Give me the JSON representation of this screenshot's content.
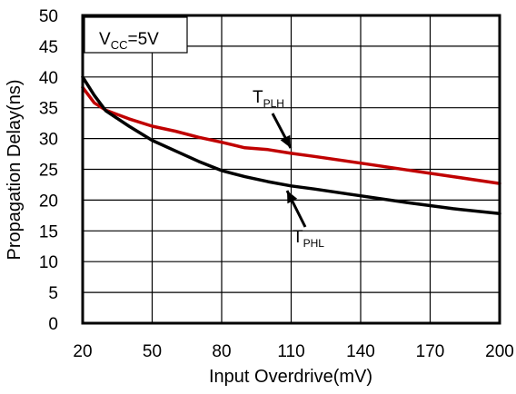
{
  "chart_data": {
    "type": "line",
    "xlabel": "Input Overdrive(mV)",
    "ylabel": "Propagation Delay(ns)",
    "xlim": [
      20,
      200
    ],
    "ylim": [
      0,
      50
    ],
    "xticks": [
      20,
      50,
      80,
      110,
      140,
      170,
      200
    ],
    "yticks": [
      0,
      5,
      10,
      15,
      20,
      25,
      30,
      35,
      40,
      45,
      50
    ],
    "grid": true,
    "condition": {
      "prefix": "V",
      "subscript": "CC",
      "suffix": "=5V"
    },
    "series": [
      {
        "name": "T_PLH",
        "label_main": "T",
        "label_sub": "PLH",
        "color": "#c00000",
        "x": [
          20,
          25,
          30,
          40,
          50,
          60,
          70,
          80,
          90,
          100,
          110,
          120,
          140,
          160,
          180,
          200
        ],
        "y": [
          38.3,
          35.8,
          34.6,
          33.2,
          32.0,
          31.2,
          30.2,
          29.4,
          28.5,
          28.2,
          27.6,
          27.1,
          26.0,
          24.9,
          23.8,
          22.7
        ]
      },
      {
        "name": "T_PHL",
        "label_main": "T",
        "label_sub": "PHL",
        "color": "#000000",
        "x": [
          20,
          25,
          30,
          40,
          50,
          60,
          70,
          80,
          90,
          100,
          110,
          120,
          140,
          160,
          180,
          200
        ],
        "y": [
          40.0,
          37.0,
          34.5,
          32.0,
          29.7,
          28.0,
          26.3,
          24.8,
          23.8,
          23.0,
          22.3,
          21.8,
          20.7,
          19.6,
          18.6,
          17.8
        ]
      }
    ]
  }
}
